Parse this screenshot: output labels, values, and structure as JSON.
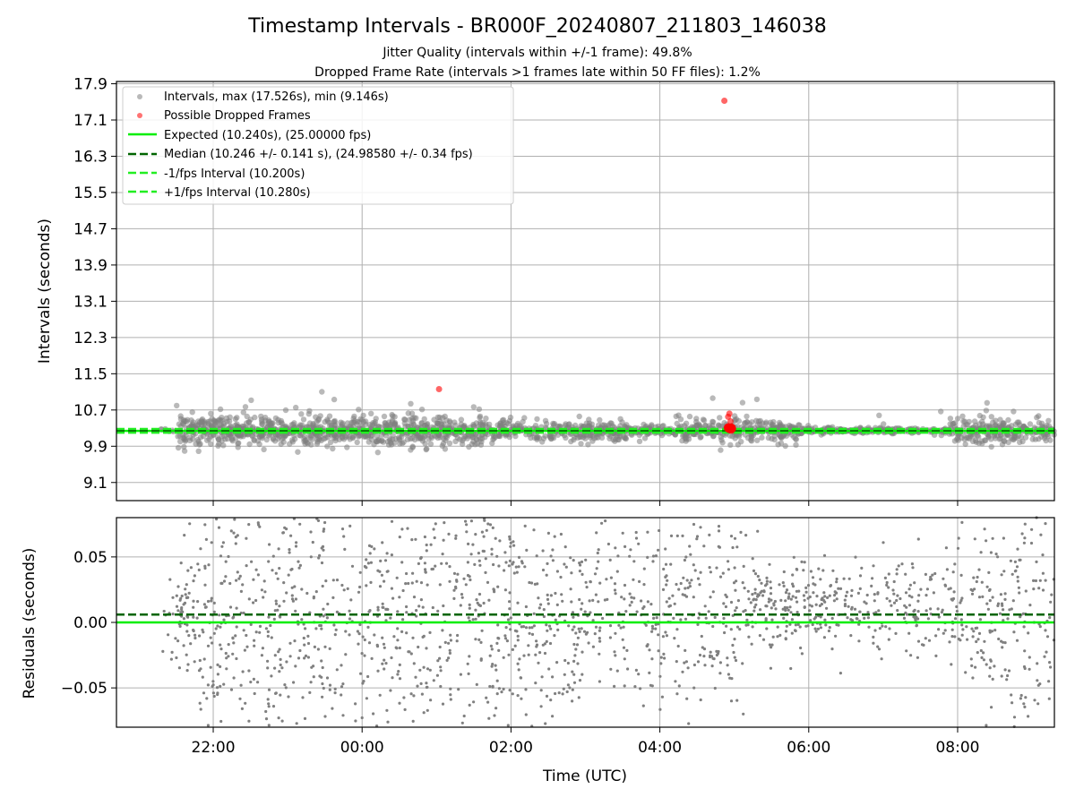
{
  "header": {
    "title": "Timestamp Intervals - BR000F_20240807_211803_146038",
    "subtitle_1": "Jitter Quality (intervals within +/-1 frame): 49.8%",
    "subtitle_2": "Dropped Frame Rate (intervals >1 frames late within 50 FF files): 1.2%"
  },
  "colors": {
    "points": "#808080",
    "dropped": "#ff0000",
    "expected": "#00ee00",
    "median": "#006400",
    "fps_bounds": "#22ee22",
    "grid": "#b0b0b0"
  },
  "chart_data": [
    {
      "type": "scatter",
      "ylabel": "Intervals (seconds)",
      "y_ticks": [
        "9.1",
        "9.9",
        "10.7",
        "11.5",
        "12.3",
        "13.1",
        "13.9",
        "14.7",
        "15.5",
        "16.3",
        "17.1",
        "17.9"
      ],
      "ylim": [
        8.7,
        17.95
      ],
      "xlim_hours": [
        20.7,
        33.3
      ],
      "grid": true,
      "legend_position": "top-left",
      "legend": [
        "Intervals, max (17.526s), min (9.146s)",
        "Possible Dropped Frames",
        "Expected (10.240s), (25.00000 fps)",
        "Median (10.246 +/- 0.141 s), (24.98580 +/- 0.34 fps)",
        "-1/fps Interval (10.200s)",
        "+1/fps Interval (10.280s)"
      ],
      "expected": 10.24,
      "median": 10.246,
      "lower_bound": 10.2,
      "upper_bound": 10.28,
      "max_interval": 17.526,
      "min_interval": 9.146,
      "dropped_frames": [
        {
          "t": "01:02",
          "interval": 11.16
        },
        {
          "t": "04:52",
          "interval": 17.526
        },
        {
          "t": "04:55",
          "interval": 10.55
        },
        {
          "t": "04:56",
          "interval": 10.62
        },
        {
          "t": "04:57",
          "interval": 10.45
        },
        {
          "t": "04:58",
          "interval": 10.32
        },
        {
          "t": "04:59",
          "interval": 10.28
        }
      ]
    },
    {
      "type": "scatter",
      "xlabel": "Time (UTC)",
      "ylabel": "Residuals (seconds)",
      "y_ticks": [
        "−0.05",
        "0.00",
        "0.05"
      ],
      "ylim": [
        -0.08,
        0.08
      ],
      "x_ticks": [
        "22:00",
        "00:00",
        "02:00",
        "04:00",
        "06:00",
        "08:00"
      ],
      "grid": true,
      "expected_residual": 0.0,
      "median_residual": 0.006
    }
  ]
}
